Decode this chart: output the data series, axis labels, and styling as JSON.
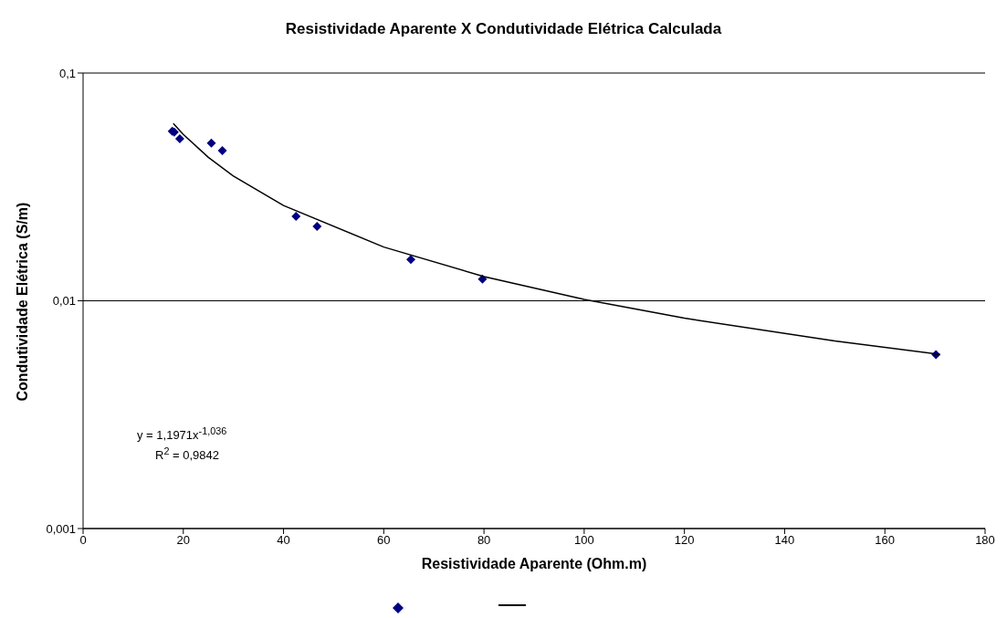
{
  "chart_data": {
    "type": "scatter",
    "title": "Resistividade Aparente X Condutividade Elétrica Calculada",
    "xlabel": "Resistividade Aparente (Ohm.m)",
    "ylabel": "Condutividade Elétrica (S/m)",
    "series": [
      {
        "color": "#000080",
        "marker": "diamond",
        "x": [
          17.8,
          18.2,
          19.3,
          25.6,
          27.8,
          42.5,
          46.7,
          65.4,
          79.7,
          170.2
        ],
        "values": [
          0.0555,
          0.055,
          0.0515,
          0.0492,
          0.0456,
          0.0235,
          0.0212,
          0.0152,
          0.01245,
          0.0058
        ]
      },
      {
        "type": "line",
        "color": "#000000",
        "marker": "none",
        "line_style": "solid",
        "x": [
          18,
          20,
          25,
          30,
          40,
          60,
          80,
          100,
          120,
          150,
          171
        ],
        "values": [
          0.06,
          0.05373,
          0.04262,
          0.03529,
          0.0262,
          0.01722,
          0.01278,
          0.01014,
          0.00839,
          0.00666,
          0.005817
        ]
      }
    ],
    "xlim": [
      0,
      180
    ],
    "xticks": [
      0,
      20,
      40,
      60,
      80,
      100,
      120,
      140,
      160,
      180
    ],
    "ylim": [
      0.001,
      0.1
    ],
    "yticks": [
      {
        "value": 0.001,
        "label": "0,001"
      },
      {
        "value": 0.01,
        "label": "0,01"
      },
      {
        "value": 0.1,
        "label": "0,1"
      }
    ],
    "log": "y",
    "grid": "y",
    "annotations": [
      "y = 1,1971x$^{-1,036}$",
      "R$^{2}$ = 0,9842"
    ]
  }
}
